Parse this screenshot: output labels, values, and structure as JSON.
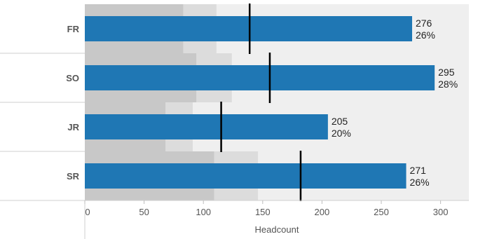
{
  "chart_data": {
    "type": "bar",
    "orientation": "horizontal",
    "subtype": "bullet",
    "categories": [
      "FR",
      "SO",
      "JR",
      "SR"
    ],
    "values": [
      276,
      295,
      205,
      271
    ],
    "percent_labels": [
      "26%",
      "28%",
      "20%",
      "26%"
    ],
    "reference_lines": [
      139,
      156,
      115,
      182
    ],
    "bands": [
      {
        "ranges": [
          83,
          111
        ],
        "max": 330
      },
      {
        "ranges": [
          94,
          124
        ],
        "max": 330
      },
      {
        "ranges": [
          68,
          91
        ],
        "max": 330
      },
      {
        "ranges": [
          109,
          146
        ],
        "max": 330
      }
    ],
    "xlabel": "Headcount",
    "xlim": [
      0,
      330
    ],
    "xticks": [
      0,
      50,
      100,
      150,
      200,
      250,
      300
    ],
    "colors": {
      "bar": "#1f77b4",
      "band_dark": "#c8c8c8",
      "band_mid": "#dcdcdc",
      "band_light": "#efefef",
      "reference": "#000000"
    }
  }
}
